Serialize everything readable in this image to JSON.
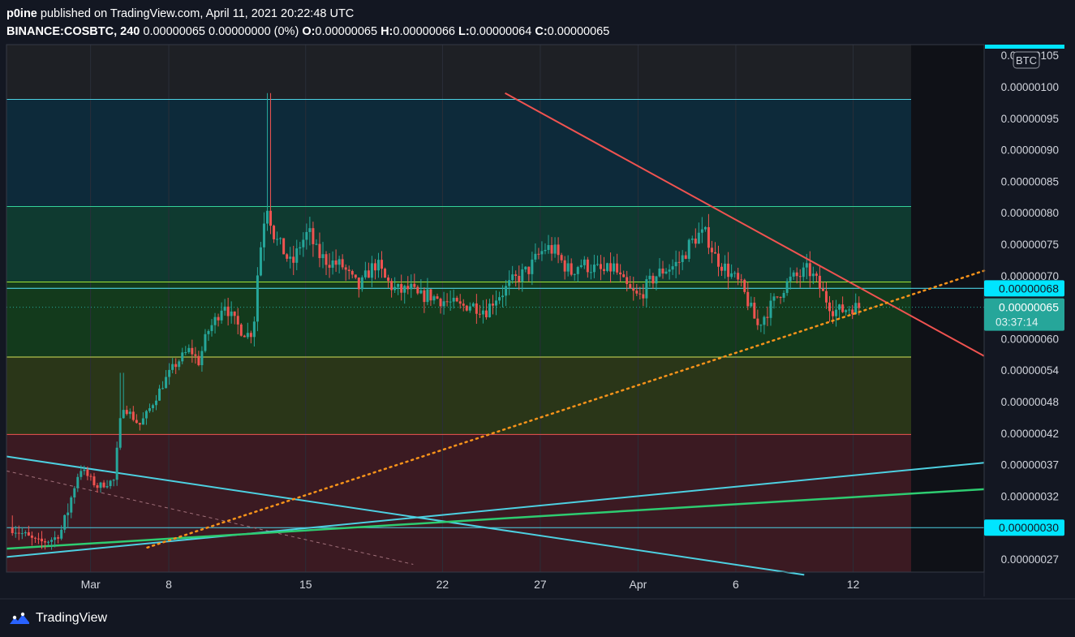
{
  "header": {
    "publisher": "p0ine",
    "published_text": "published on TradingView.com, April 11, 2021 20:22:48 UTC",
    "symbol": "BINANCE:COSBTC, 240",
    "change": "0.00000065 0.00000000 (0%)",
    "o_label": "O:",
    "o_value": "0.00000065",
    "h_label": "H:",
    "h_value": "0.00000066",
    "l_label": "L:",
    "l_value": "0.00000064",
    "c_label": "C:",
    "c_value": "0.00000065"
  },
  "footer": {
    "brand": "TradingView"
  },
  "colors": {
    "background": "#131722",
    "up": "#26a69a",
    "down": "#ef5350",
    "zone_blue": "#0d2a3a",
    "zone_teal": "#0f3a30",
    "zone_green": "#133a1c",
    "zone_olive": "#2a3618",
    "zone_red": "#3b1a22",
    "downtrend": "#f05350",
    "dotted_support": "#f7931a",
    "cyan_line": "#4dd0e1",
    "green_line": "#2ecc71"
  },
  "chart_data": {
    "type": "candlestick",
    "title": "",
    "currency_badge": "BTC",
    "y_ticks": [
      "0.00000027",
      "0.00000030",
      "0.00000032",
      "0.00000037",
      "0.00000042",
      "0.00000048",
      "0.00000054",
      "0.00000060",
      "0.00000065",
      "0.00000070",
      "0.00000075",
      "0.00000080",
      "0.00000085",
      "0.00000090",
      "0.00000095",
      "0.00000100",
      "0.00000105"
    ],
    "x_ticks": [
      {
        "label": "Mar",
        "day": 4
      },
      {
        "label": "8",
        "day": 8
      },
      {
        "label": "15",
        "day": 15
      },
      {
        "label": "22",
        "day": 22
      },
      {
        "label": "27",
        "day": 27
      },
      {
        "label": "Apr",
        "day": 32
      },
      {
        "label": "6",
        "day": 37
      },
      {
        "label": "12",
        "day": 43
      }
    ],
    "x_range_days": [
      -0.3,
      49.7
    ],
    "price_labels": [
      {
        "label": "0.00000068",
        "price": 6.8e-07,
        "style": "cyan"
      },
      {
        "label": "0.00000065",
        "price": 6.5e-07,
        "style": "current",
        "countdown": "03:37:14"
      },
      {
        "label": "0.00000030",
        "price": 3e-07,
        "style": "cyan"
      }
    ],
    "horizontal_levels": [
      9.8e-07,
      8.1e-07,
      6.9e-07,
      5.65e-07,
      4.18e-07,
      3e-07
    ],
    "zones": [
      {
        "from": 8.1e-07,
        "to": 9.8e-07,
        "color": "zone_blue"
      },
      {
        "from": 6.9e-07,
        "to": 8.1e-07,
        "color": "zone_teal"
      },
      {
        "from": 5.65e-07,
        "to": 6.9e-07,
        "color": "zone_green"
      },
      {
        "from": 4.18e-07,
        "to": 5.65e-07,
        "color": "zone_olive"
      },
      {
        "from": 2.55e-07,
        "to": 4.18e-07,
        "color": "zone_red"
      }
    ],
    "trendlines": [
      {
        "name": "",
        "from": [
          25.2,
          9.9e-07
        ],
        "to": [
          49.7,
          5.67e-07
        ],
        "style": "solid",
        "color": "downtrend"
      },
      {
        "name": "",
        "from": [
          6.9,
          2.81e-07
        ],
        "to": [
          49.7,
          7.08e-07
        ],
        "style": "dotted",
        "color": "dotted_support"
      },
      {
        "name": "",
        "from": [
          -0.3,
          3.83e-07
        ],
        "to": [
          40.5,
          2.55e-07
        ],
        "style": "solid",
        "color": "cyan_line"
      },
      {
        "name": "",
        "from": [
          -0.3,
          2.72e-07
        ],
        "to": [
          49.7,
          3.73e-07
        ],
        "style": "solid",
        "color": "cyan_line"
      },
      {
        "name": "",
        "from": [
          -0.3,
          2.8e-07
        ],
        "to": [
          49.7,
          3.31e-07
        ],
        "style": "solid",
        "color": "green_line"
      }
    ],
    "candle_path": [
      [
        0,
        3e-07
      ],
      [
        2,
        2.9e-07
      ],
      [
        3,
        2.85e-07
      ],
      [
        5,
        2.9e-07
      ],
      [
        6,
        3e-07
      ],
      [
        7,
        3.2e-07
      ],
      [
        8,
        3.65e-07
      ],
      [
        9,
        3.5e-07
      ],
      [
        10,
        3.35e-07
      ],
      [
        11,
        3.4e-07
      ],
      [
        12,
        3.45e-07
      ],
      [
        12.8,
        4.5e-07
      ],
      [
        13,
        4.75e-07
      ],
      [
        14,
        4.55e-07
      ],
      [
        15,
        4.35e-07
      ],
      [
        16,
        4.6e-07
      ],
      [
        17,
        4.9e-07
      ],
      [
        18,
        5.2e-07
      ],
      [
        19,
        5.45e-07
      ],
      [
        20,
        5.65e-07
      ],
      [
        21,
        5.8e-07
      ],
      [
        22,
        5.55e-07
      ],
      [
        23,
        6.1e-07
      ],
      [
        24,
        6.3e-07
      ],
      [
        25,
        6.6e-07
      ],
      [
        26,
        6.3e-07
      ],
      [
        27,
        6.15e-07
      ],
      [
        28,
        6.05e-07
      ],
      [
        28.5,
        6.2e-07
      ],
      [
        29,
        7.1e-07
      ],
      [
        30,
        8.2e-07
      ],
      [
        31,
        7.6e-07
      ],
      [
        32,
        7.4e-07
      ],
      [
        33,
        7.15e-07
      ],
      [
        34,
        7.5e-07
      ],
      [
        35,
        7.7e-07
      ],
      [
        36,
        7.35e-07
      ],
      [
        37,
        7.25e-07
      ],
      [
        38,
        7.2e-07
      ],
      [
        39,
        7.15e-07
      ],
      [
        40,
        6.95e-07
      ],
      [
        41,
        6.8e-07
      ],
      [
        42,
        7.05e-07
      ],
      [
        43,
        7.2e-07
      ],
      [
        44,
        6.95e-07
      ],
      [
        45,
        6.8e-07
      ],
      [
        46,
        6.75e-07
      ],
      [
        47,
        6.8e-07
      ],
      [
        48,
        6.65e-07
      ],
      [
        49,
        6.7e-07
      ],
      [
        50,
        6.65e-07
      ],
      [
        51,
        6.6e-07
      ],
      [
        52,
        6.55e-07
      ],
      [
        53,
        6.5e-07
      ],
      [
        54,
        6.55e-07
      ],
      [
        55,
        6.5e-07
      ],
      [
        56,
        6.45e-07
      ],
      [
        57,
        6.65e-07
      ],
      [
        58,
        6.75e-07
      ],
      [
        59,
        6.9e-07
      ],
      [
        60,
        7e-07
      ],
      [
        61,
        7.1e-07
      ],
      [
        62,
        7.3e-07
      ],
      [
        63,
        7.45e-07
      ],
      [
        64,
        7.4e-07
      ],
      [
        65,
        7.2e-07
      ],
      [
        66,
        7.05e-07
      ],
      [
        67,
        7.2e-07
      ],
      [
        68,
        7.15e-07
      ],
      [
        69,
        7.1e-07
      ],
      [
        70,
        7.05e-07
      ],
      [
        71,
        7.15e-07
      ],
      [
        72,
        6.9e-07
      ],
      [
        73,
        6.75e-07
      ],
      [
        74,
        6.65e-07
      ],
      [
        75,
        6.85e-07
      ],
      [
        76,
        7e-07
      ],
      [
        77,
        7.1e-07
      ],
      [
        78,
        7.15e-07
      ],
      [
        79,
        7.25e-07
      ],
      [
        80,
        7.5e-07
      ],
      [
        81,
        7.65e-07
      ],
      [
        82,
        7.65e-07
      ],
      [
        83,
        7.3e-07
      ],
      [
        84,
        7.15e-07
      ],
      [
        85,
        7e-07
      ],
      [
        86,
        6.85e-07
      ],
      [
        87,
        6.55e-07
      ],
      [
        88,
        6.2e-07
      ],
      [
        89,
        6.4e-07
      ],
      [
        90,
        6.6e-07
      ],
      [
        91,
        6.8e-07
      ],
      [
        92,
        6.95e-07
      ],
      [
        93,
        7e-07
      ],
      [
        94,
        7.1e-07
      ],
      [
        95,
        6.9e-07
      ],
      [
        96,
        6.65e-07
      ],
      [
        97,
        6.45e-07
      ],
      [
        98,
        6.45e-07
      ],
      [
        99,
        6.5e-07
      ],
      [
        100,
        6.5e-07
      ]
    ],
    "candle_time_map": {
      "start_day": 0.0,
      "end_day": 43.3
    }
  }
}
